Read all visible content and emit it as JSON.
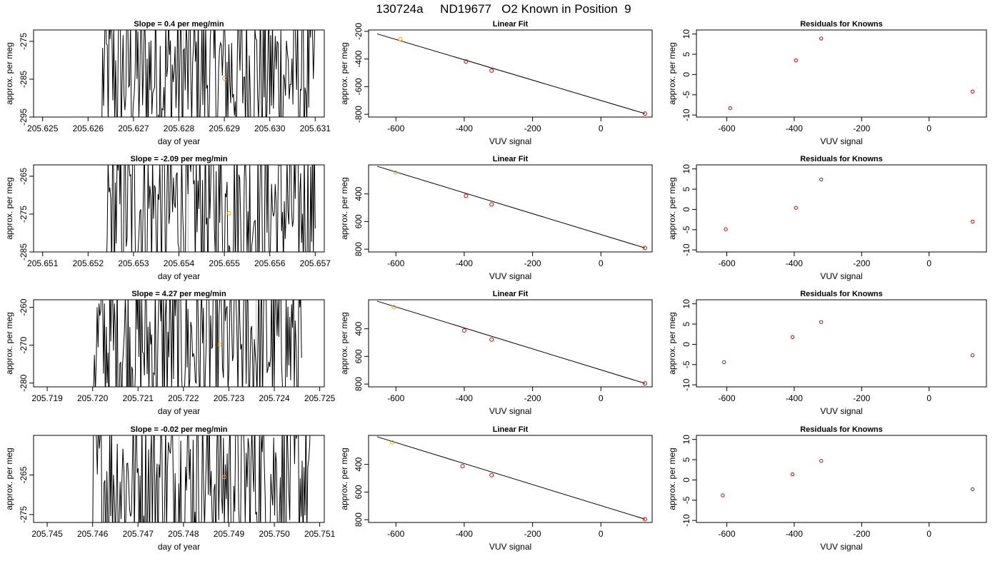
{
  "title": "130724a     ND19677   O2 Known in Position  9",
  "colors": {
    "trace": "#000000",
    "highlight": "#ffa500",
    "residual_point": "#cc0000",
    "grid_line": "#bbbbbb",
    "axis": "#000000"
  },
  "chart_data": [
    {
      "type": "line",
      "row": 1,
      "panel": "time-series",
      "title": "Slope =  0.4  per meg/min",
      "xlabel": "day of year",
      "ylabel": "approx. per meg",
      "xlim": [
        205.6248,
        205.6312
      ],
      "ylim": [
        -295,
        -272
      ],
      "xticks": [
        "205.625",
        "205.626",
        "205.627",
        "205.628",
        "205.629",
        "205.630",
        "205.631"
      ],
      "yticks": [
        "-275",
        "-285",
        "-295"
      ],
      "data_start": 205.6263,
      "data_end": 205.631,
      "vlines": [
        205.6281,
        205.6299
      ],
      "highlight_point": {
        "x": 205.629,
        "y": -284.8
      }
    },
    {
      "type": "scatter",
      "row": 1,
      "panel": "linear-fit",
      "title": "Linear Fit",
      "xlabel": "VUV signal",
      "ylabel": "approx. per meg",
      "xlim": [
        -680,
        150
      ],
      "ylim": [
        -820,
        -190
      ],
      "xticks": [
        "-600",
        "-400",
        "-200",
        "0"
      ],
      "yticks": [
        "-200",
        "-400",
        "-600",
        "-800"
      ],
      "points": [
        {
          "x": -587,
          "y": -255
        },
        {
          "x": -395,
          "y": -418
        },
        {
          "x": -320,
          "y": -484
        },
        {
          "x": 129,
          "y": -795
        }
      ],
      "fit_line": [
        {
          "x": -655,
          "y": -218
        },
        {
          "x": 129,
          "y": -795
        }
      ],
      "highlight_point_index": 0
    },
    {
      "type": "scatter",
      "row": 1,
      "panel": "residuals",
      "title": "Residuals for Knowns",
      "xlabel": "VUV signal",
      "ylabel": "approx. per meg",
      "xlim": [
        -690,
        170
      ],
      "ylim": [
        -10.5,
        11
      ],
      "xticks": [
        "-600",
        "-400",
        "-200",
        "0"
      ],
      "yticks": [
        "10",
        "5",
        "0",
        "-5",
        "-10"
      ],
      "points": [
        {
          "x": -590,
          "y": -8.3
        },
        {
          "x": -395,
          "y": 3.5
        },
        {
          "x": -320,
          "y": 8.9
        },
        {
          "x": 129,
          "y": -4.2
        }
      ]
    },
    {
      "type": "line",
      "row": 2,
      "panel": "time-series",
      "title": "Slope =  -2.09  per meg/min",
      "xlabel": "day of year",
      "ylabel": "approx. per meg",
      "xlim": [
        205.6508,
        205.6572
      ],
      "ylim": [
        -285,
        -262
      ],
      "xticks": [
        "205.651",
        "205.652",
        "205.653",
        "205.654",
        "205.655",
        "205.656",
        "205.657"
      ],
      "yticks": [
        "-265",
        "-275",
        "-285"
      ],
      "data_start": 205.6524,
      "data_end": 205.657,
      "vlines": [
        205.6542,
        205.6559
      ],
      "highlight_point": {
        "x": 205.6551,
        "y": -274.8
      }
    },
    {
      "type": "scatter",
      "row": 2,
      "panel": "linear-fit",
      "title": "Linear Fit",
      "xlabel": "VUV signal",
      "ylabel": "approx. per meg",
      "xlim": [
        -680,
        150
      ],
      "ylim": [
        -820,
        -190
      ],
      "xticks": [
        "-600",
        "-400",
        "-200",
        "0"
      ],
      "yticks": [
        "400",
        "600",
        "800"
      ],
      "ytick_values": [
        -400,
        -600,
        -800
      ],
      "points": [
        {
          "x": -601,
          "y": -245
        },
        {
          "x": -395,
          "y": -414
        },
        {
          "x": -320,
          "y": -476
        },
        {
          "x": 129,
          "y": -791
        }
      ],
      "fit_line": [
        {
          "x": -655,
          "y": -200
        },
        {
          "x": 129,
          "y": -791
        }
      ],
      "highlight_point_index": 0
    },
    {
      "type": "scatter",
      "row": 2,
      "panel": "residuals",
      "title": "Residuals for Knowns",
      "xlabel": "VUV signal",
      "ylabel": "approx. per meg",
      "xlim": [
        -690,
        170
      ],
      "ylim": [
        -10.5,
        11
      ],
      "xticks": [
        "-600",
        "-400",
        "-200",
        "0"
      ],
      "yticks": [
        "10",
        "5",
        "0",
        "-5",
        "-10"
      ],
      "points": [
        {
          "x": -603,
          "y": -4.9
        },
        {
          "x": -395,
          "y": 0.4
        },
        {
          "x": -320,
          "y": 7.4
        },
        {
          "x": 129,
          "y": -3.0
        }
      ]
    },
    {
      "type": "line",
      "row": 3,
      "panel": "time-series",
      "title": "Slope =  4.27  per meg/min",
      "xlabel": "day of year",
      "ylabel": "approx. per meg",
      "xlim": [
        205.7187,
        205.7251
      ],
      "ylim": [
        -281,
        -258
      ],
      "xticks": [
        "205.719",
        "205.720",
        "205.721",
        "205.722",
        "205.723",
        "205.724",
        "205.725"
      ],
      "yticks": [
        "-260",
        "-270",
        "-280"
      ],
      "data_start": 205.72,
      "data_end": 205.7246,
      "vlines": [
        205.7219,
        205.7236
      ],
      "highlight_point": {
        "x": 205.7228,
        "y": -269.8
      }
    },
    {
      "type": "scatter",
      "row": 3,
      "panel": "linear-fit",
      "title": "Linear Fit",
      "xlabel": "VUV signal",
      "ylabel": "approx. per meg",
      "xlim": [
        -680,
        150
      ],
      "ylim": [
        -820,
        -190
      ],
      "xticks": [
        "-600",
        "-400",
        "-200",
        "0"
      ],
      "yticks": [
        "400",
        "600",
        "800"
      ],
      "ytick_values": [
        -400,
        -600,
        -800
      ],
      "points": [
        {
          "x": -606,
          "y": -242
        },
        {
          "x": -400,
          "y": -412
        },
        {
          "x": -320,
          "y": -478
        },
        {
          "x": 129,
          "y": -795
        }
      ],
      "fit_line": [
        {
          "x": -655,
          "y": -200
        },
        {
          "x": 129,
          "y": -795
        }
      ],
      "highlight_point_index": 0
    },
    {
      "type": "scatter",
      "row": 3,
      "panel": "residuals",
      "title": "Residuals for Knowns",
      "xlabel": "VUV signal",
      "ylabel": "approx. per meg",
      "xlim": [
        -690,
        170
      ],
      "ylim": [
        -10.5,
        11
      ],
      "xticks": [
        "-600",
        "-400",
        "-200",
        "0"
      ],
      "yticks": [
        "10",
        "5",
        "0",
        "-5",
        "-10"
      ],
      "points": [
        {
          "x": -608,
          "y": -4.4
        },
        {
          "x": -405,
          "y": 1.8
        },
        {
          "x": -320,
          "y": 5.5
        },
        {
          "x": 129,
          "y": -2.7
        }
      ]
    },
    {
      "type": "line",
      "row": 4,
      "panel": "time-series",
      "title": "Slope =  -0.02  per meg/min",
      "xlabel": "day of year",
      "ylabel": "approx. per meg",
      "xlim": [
        205.7447,
        205.7511
      ],
      "ylim": [
        -277,
        -255
      ],
      "xticks": [
        "205.745",
        "205.746",
        "205.747",
        "205.748",
        "205.749",
        "205.750",
        "205.751"
      ],
      "yticks": [
        "-265",
        "-275"
      ],
      "data_start": 205.746,
      "data_end": 205.7508,
      "vlines": [
        205.7479,
        205.7497
      ],
      "highlight_point": {
        "x": 205.7489,
        "y": -265.5
      }
    },
    {
      "type": "scatter",
      "row": 4,
      "panel": "linear-fit",
      "title": "Linear Fit",
      "xlabel": "VUV signal",
      "ylabel": "approx. per meg",
      "xlim": [
        -680,
        150
      ],
      "ylim": [
        -820,
        -190
      ],
      "xticks": [
        "-600",
        "-400",
        "-200",
        "0"
      ],
      "yticks": [
        "400",
        "600",
        "800"
      ],
      "ytick_values": [
        -400,
        -600,
        -800
      ],
      "points": [
        {
          "x": -611,
          "y": -240
        },
        {
          "x": -405,
          "y": -413
        },
        {
          "x": -320,
          "y": -478
        },
        {
          "x": 129,
          "y": -796
        }
      ],
      "fit_line": [
        {
          "x": -655,
          "y": -200
        },
        {
          "x": 129,
          "y": -796
        }
      ],
      "highlight_point_index": 0
    },
    {
      "type": "scatter",
      "row": 4,
      "panel": "residuals",
      "title": "Residuals for Knowns",
      "xlabel": "VUV signal",
      "ylabel": "approx. per meg",
      "xlim": [
        -690,
        170
      ],
      "ylim": [
        -10.5,
        11
      ],
      "xticks": [
        "-600",
        "-400",
        "-200",
        "0"
      ],
      "yticks": [
        "10",
        "5",
        "0",
        "-5",
        "-10"
      ],
      "points": [
        {
          "x": -612,
          "y": -3.8
        },
        {
          "x": -405,
          "y": 1.4
        },
        {
          "x": -320,
          "y": 4.7
        },
        {
          "x": 129,
          "y": -2.3
        }
      ]
    }
  ]
}
